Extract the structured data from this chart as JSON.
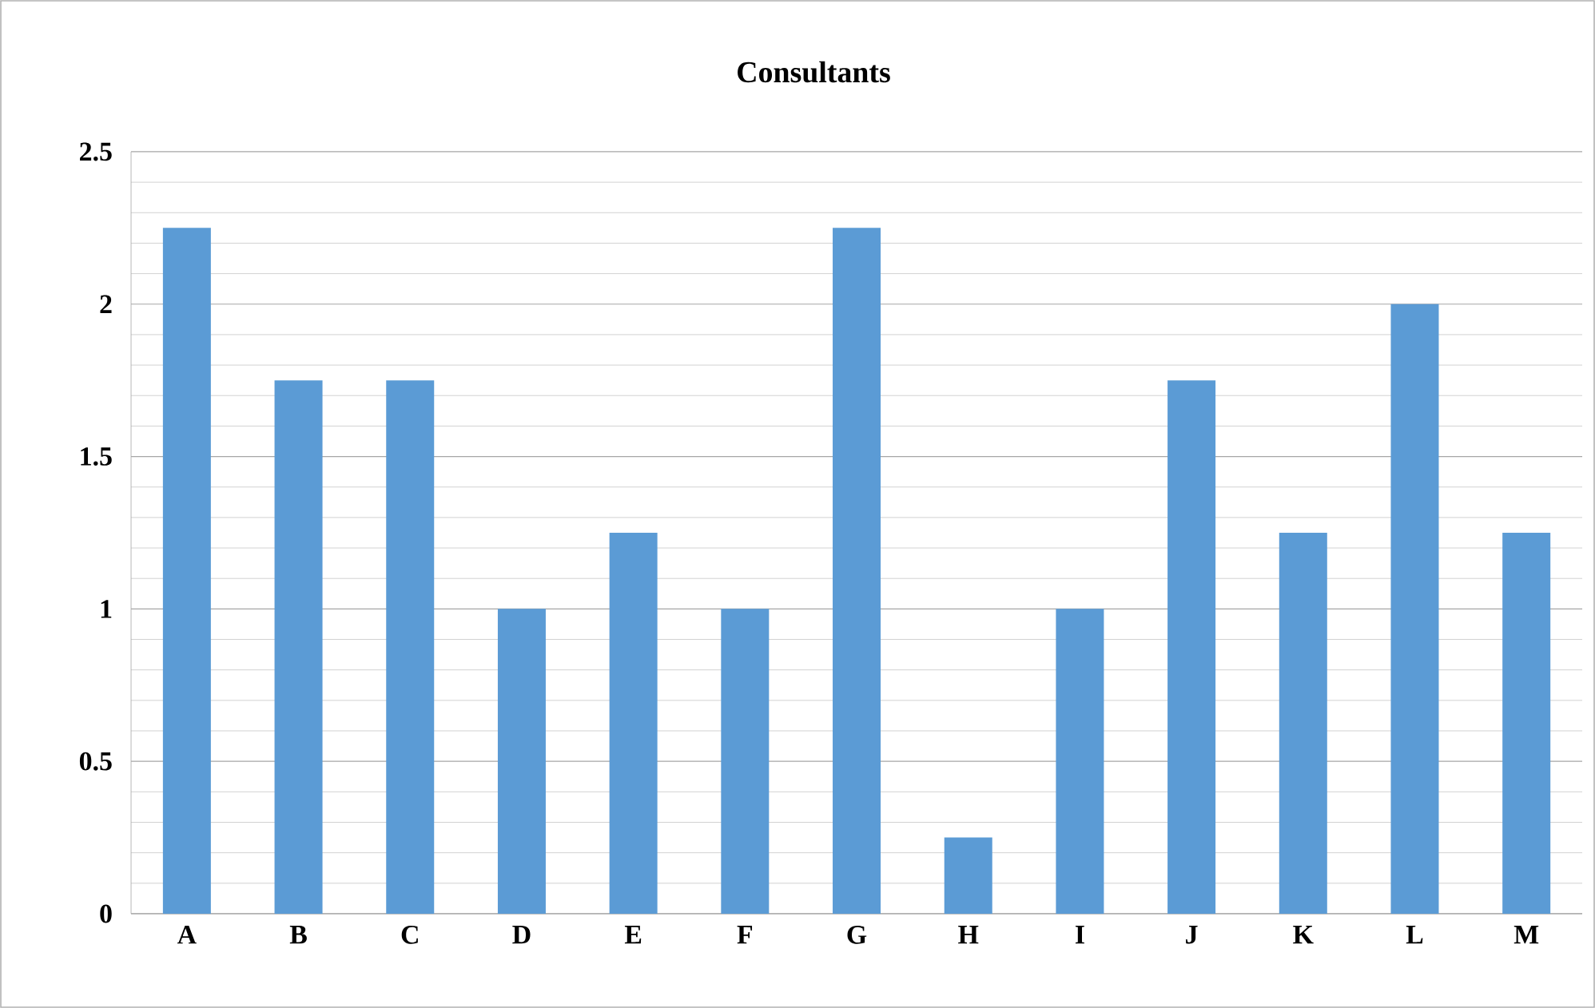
{
  "chart_data": {
    "type": "bar",
    "title": "Consultants",
    "categories": [
      "A",
      "B",
      "C",
      "D",
      "E",
      "F",
      "G",
      "H",
      "I",
      "J",
      "K",
      "L",
      "M"
    ],
    "values": [
      2.25,
      1.75,
      1.75,
      1,
      1.25,
      1,
      2.25,
      0.25,
      1,
      1.75,
      1.25,
      2,
      1.25
    ],
    "color": "#5b9bd5",
    "ylim": [
      0,
      2.5
    ],
    "yticks": [
      0,
      0.5,
      1,
      1.5,
      2,
      2.5
    ],
    "grid": "y"
  }
}
